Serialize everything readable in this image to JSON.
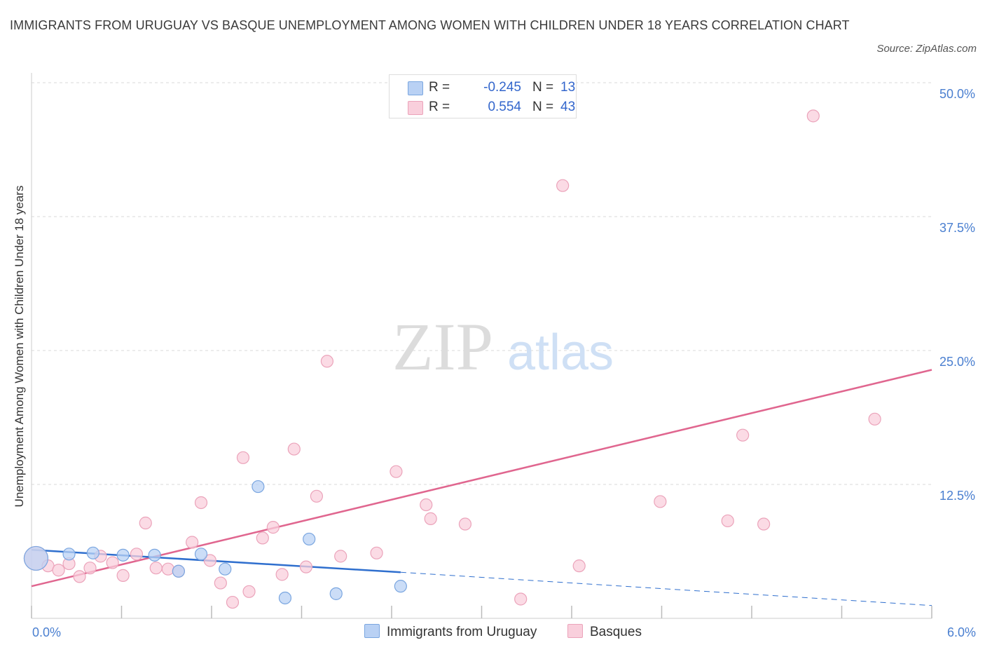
{
  "title": "IMMIGRANTS FROM URUGUAY VS BASQUE UNEMPLOYMENT AMONG WOMEN WITH CHILDREN UNDER 18 YEARS CORRELATION CHART",
  "source": "Source: ZipAtlas.com",
  "watermark": {
    "zip": "ZIP",
    "atlas": "atlas"
  },
  "colors": {
    "blue_fill": "#b9d1f4",
    "blue_stroke": "#7aa6e0",
    "blue_line": "#2f6fce",
    "pink_fill": "#f9cfdc",
    "pink_stroke": "#eba3ba",
    "pink_line": "#e0668f",
    "grid": "#d9d9d9",
    "tick_text": "#4a7fd0"
  },
  "legend": {
    "rows": [
      {
        "r_label": "R =",
        "r_value": "-0.245",
        "n_label": "N =",
        "n_value": "13"
      },
      {
        "r_label": "R =",
        "r_value": "0.554",
        "n_label": "N =",
        "n_value": "43"
      }
    ]
  },
  "bottom_legend": [
    "Immigrants from Uruguay",
    "Basques"
  ],
  "chart_data": {
    "type": "scatter",
    "title": "IMMIGRANTS FROM URUGUAY VS BASQUE UNEMPLOYMENT AMONG WOMEN WITH CHILDREN UNDER 18 YEARS CORRELATION CHART",
    "xlabel": "",
    "ylabel": "Unemployment Among Women with Children Under 18 years",
    "xlim": [
      0,
      6
    ],
    "ylim": [
      0,
      50
    ],
    "x_tick_labels": [
      {
        "value": 0,
        "label": "0.0%"
      },
      {
        "value": 6,
        "label": "6.0%"
      }
    ],
    "y_tick_labels": [
      {
        "value": 12.5,
        "label": "12.5%"
      },
      {
        "value": 25,
        "label": "25.0%"
      },
      {
        "value": 37.5,
        "label": "37.5%"
      },
      {
        "value": 50,
        "label": "50.0%"
      }
    ],
    "x_minor_ticks": [
      0,
      0.6,
      1.2,
      1.8,
      2.4,
      3.0,
      3.6,
      4.2,
      4.8,
      5.4,
      6.0
    ],
    "grid": true,
    "legend_position": "top-center",
    "series": [
      {
        "name": "Immigrants from Uruguay",
        "points": [
          {
            "x": 0.03,
            "y": 5.6,
            "large": true
          },
          {
            "x": 0.25,
            "y": 6.0
          },
          {
            "x": 0.41,
            "y": 6.1
          },
          {
            "x": 0.61,
            "y": 5.9
          },
          {
            "x": 0.82,
            "y": 5.9
          },
          {
            "x": 0.98,
            "y": 4.4
          },
          {
            "x": 1.13,
            "y": 6.0
          },
          {
            "x": 1.29,
            "y": 4.6
          },
          {
            "x": 1.51,
            "y": 12.3
          },
          {
            "x": 1.69,
            "y": 1.9
          },
          {
            "x": 1.85,
            "y": 7.4
          },
          {
            "x": 2.03,
            "y": 2.3
          },
          {
            "x": 2.46,
            "y": 3.0
          }
        ],
        "trend": {
          "x0": 0,
          "y0": 6.4,
          "x1": 2.46,
          "y1": 4.3,
          "dash_to_x": 6,
          "dash_to_y": 1.2
        }
      },
      {
        "name": "Basques",
        "points": [
          {
            "x": 0.03,
            "y": 5.6,
            "large": true
          },
          {
            "x": 0.11,
            "y": 4.9
          },
          {
            "x": 0.18,
            "y": 4.5
          },
          {
            "x": 0.25,
            "y": 5.1
          },
          {
            "x": 0.32,
            "y": 3.9
          },
          {
            "x": 0.39,
            "y": 4.7
          },
          {
            "x": 0.46,
            "y": 5.8
          },
          {
            "x": 0.54,
            "y": 5.2
          },
          {
            "x": 0.61,
            "y": 4.0
          },
          {
            "x": 0.7,
            "y": 6.0
          },
          {
            "x": 0.76,
            "y": 8.9
          },
          {
            "x": 0.83,
            "y": 4.7
          },
          {
            "x": 0.91,
            "y": 4.6
          },
          {
            "x": 0.98,
            "y": 4.4
          },
          {
            "x": 1.07,
            "y": 7.1
          },
          {
            "x": 1.13,
            "y": 10.8
          },
          {
            "x": 1.19,
            "y": 5.4
          },
          {
            "x": 1.26,
            "y": 3.3
          },
          {
            "x": 1.34,
            "y": 1.5
          },
          {
            "x": 1.41,
            "y": 15.0
          },
          {
            "x": 1.45,
            "y": 2.5
          },
          {
            "x": 1.54,
            "y": 7.5
          },
          {
            "x": 1.61,
            "y": 8.5
          },
          {
            "x": 1.67,
            "y": 4.1
          },
          {
            "x": 1.75,
            "y": 15.8
          },
          {
            "x": 1.83,
            "y": 4.8
          },
          {
            "x": 1.9,
            "y": 11.4
          },
          {
            "x": 1.97,
            "y": 24.0
          },
          {
            "x": 2.06,
            "y": 5.8
          },
          {
            "x": 2.3,
            "y": 6.1
          },
          {
            "x": 2.43,
            "y": 13.7
          },
          {
            "x": 2.63,
            "y": 10.6
          },
          {
            "x": 2.66,
            "y": 9.3
          },
          {
            "x": 2.89,
            "y": 8.8
          },
          {
            "x": 3.26,
            "y": 1.8
          },
          {
            "x": 3.54,
            "y": 40.4
          },
          {
            "x": 3.65,
            "y": 4.9
          },
          {
            "x": 4.19,
            "y": 10.9
          },
          {
            "x": 4.64,
            "y": 9.1
          },
          {
            "x": 4.74,
            "y": 17.1
          },
          {
            "x": 4.88,
            "y": 8.8
          },
          {
            "x": 5.21,
            "y": 46.9
          },
          {
            "x": 5.62,
            "y": 18.6
          }
        ],
        "trend": {
          "x0": 0,
          "y0": 3.0,
          "x1": 6,
          "y1": 23.2
        }
      }
    ]
  }
}
